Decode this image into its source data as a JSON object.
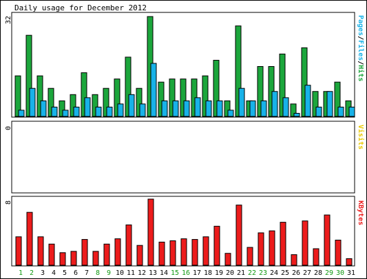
{
  "title": "Daily usage for December 2012",
  "colors": {
    "hits": "#1ca63c",
    "files": "#18b2e8",
    "visits": "#e8c800",
    "kbytes": "#ec1c1c",
    "weekday_label": "#000000",
    "weekend_label": "#119911"
  },
  "panels": {
    "top": {
      "ymax_label": "32",
      "legend": [
        {
          "text": "Pages",
          "color_key": "files"
        },
        {
          "text": "/",
          "color_key": "weekday_label"
        },
        {
          "text": "Files",
          "color_key": "files"
        },
        {
          "text": "/",
          "color_key": "weekday_label"
        },
        {
          "text": "Hits",
          "color_key": "hits"
        }
      ]
    },
    "middle": {
      "ymax_label": "0",
      "legend": [
        {
          "text": "Visits",
          "color_key": "visits"
        }
      ]
    },
    "bottom": {
      "ymax_label": "8",
      "legend": [
        {
          "text": "KBytes",
          "color_key": "kbytes"
        }
      ]
    }
  },
  "chart_data": {
    "type": "bar",
    "title": "Daily usage for December 2012",
    "categories": [
      "1",
      "2",
      "3",
      "4",
      "5",
      "6",
      "7",
      "8",
      "9",
      "10",
      "11",
      "12",
      "13",
      "14",
      "15",
      "16",
      "17",
      "18",
      "19",
      "20",
      "21",
      "22",
      "23",
      "24",
      "25",
      "26",
      "27",
      "28",
      "29",
      "30",
      "31"
    ],
    "weekend_days": [
      "1",
      "2",
      "8",
      "9",
      "15",
      "16",
      "22",
      "23",
      "29",
      "30"
    ],
    "series": [
      {
        "name": "Hits",
        "panel": "top",
        "color_key": "hits",
        "values": [
          13,
          26,
          13,
          9,
          5,
          7,
          14,
          7,
          9,
          12,
          19,
          9,
          32,
          11,
          12,
          12,
          12,
          13,
          18,
          5,
          29,
          5,
          16,
          16,
          20,
          4,
          22,
          8,
          8,
          11,
          5
        ]
      },
      {
        "name": "Files",
        "panel": "top",
        "color_key": "files",
        "values": [
          2,
          9,
          5,
          3,
          2,
          3,
          6,
          3,
          3,
          4,
          7,
          4,
          17,
          5,
          5,
          5,
          6,
          5,
          5,
          2,
          9,
          5,
          5,
          8,
          6,
          1,
          10,
          3,
          8,
          3,
          3
        ]
      },
      {
        "name": "Pages",
        "panel": "top",
        "color_key": "files",
        "values": [
          2,
          9,
          5,
          3,
          2,
          3,
          6,
          3,
          3,
          4,
          7,
          4,
          17,
          5,
          5,
          5,
          6,
          5,
          5,
          2,
          9,
          5,
          5,
          8,
          6,
          1,
          10,
          3,
          8,
          3,
          3
        ]
      },
      {
        "name": "Visits",
        "panel": "middle",
        "color_key": "visits",
        "values": [
          0,
          0,
          0,
          0,
          0,
          0,
          0,
          0,
          0,
          0,
          0,
          0,
          0,
          0,
          0,
          0,
          0,
          0,
          0,
          0,
          0,
          0,
          0,
          0,
          0,
          0,
          0,
          0,
          0,
          0,
          0
        ]
      },
      {
        "name": "KBytes",
        "panel": "bottom",
        "color_key": "kbytes",
        "values": [
          4.3,
          8.0,
          4.3,
          3.2,
          1.9,
          2.1,
          3.9,
          2.1,
          3.2,
          4.0,
          6.1,
          3.0,
          10.0,
          3.5,
          3.7,
          4.0,
          3.9,
          4.3,
          5.9,
          1.8,
          9.1,
          2.7,
          4.9,
          5.2,
          6.5,
          1.6,
          6.7,
          2.5,
          7.6,
          3.8,
          1.0
        ]
      }
    ],
    "ylim": {
      "top": [
        0,
        32
      ],
      "middle": [
        0,
        0
      ],
      "bottom": [
        0,
        10
      ]
    },
    "grid": false,
    "legend": "right (vertical text)"
  }
}
